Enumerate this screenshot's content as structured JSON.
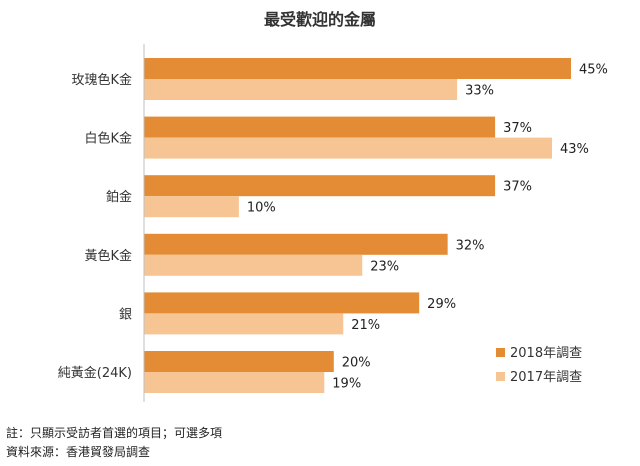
{
  "chart_data": {
    "type": "bar",
    "orientation": "horizontal",
    "title": "最受歡迎的金屬",
    "categories": [
      "玫瑰色K金",
      "白色K金",
      "鉑金",
      "黃色K金",
      "銀",
      "純黃金(24K)"
    ],
    "series": [
      {
        "name": "2018年調查",
        "values": [
          45,
          37,
          37,
          32,
          29,
          20
        ],
        "color": "#e38b35"
      },
      {
        "name": "2017年調查",
        "values": [
          33,
          43,
          10,
          23,
          21,
          19
        ],
        "color": "#f7c594"
      }
    ],
    "value_suffix": "%",
    "xlim": [
      0,
      50
    ],
    "grid": false,
    "legend_position": "bottom-right"
  },
  "notes": [
    "註：只顯示受訪者首選的項目；可選多項",
    "資料來源：香港貿發局調查"
  ],
  "colors": {
    "axis": "#bfbfbf"
  }
}
